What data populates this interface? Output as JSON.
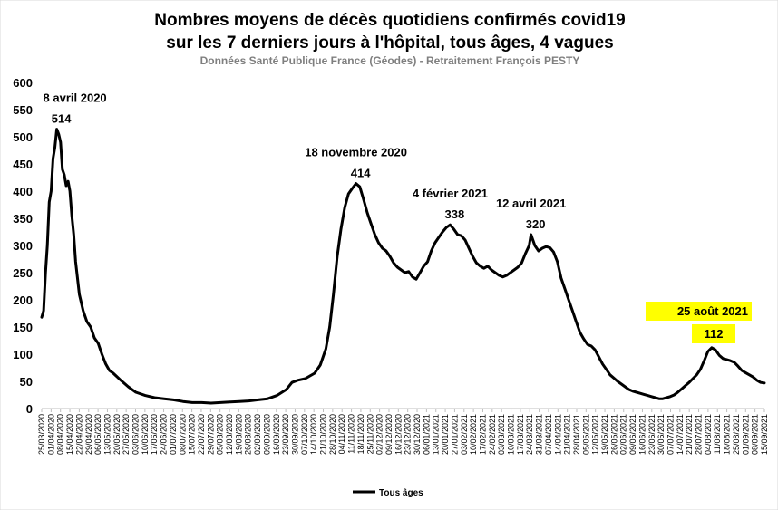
{
  "chart_data": {
    "type": "line",
    "title_line1": "Nombres moyens de décès quotidiens confirmés covid19",
    "title_line2": "sur les 7 derniers jours à l'hôpital, tous âges, 4 vagues",
    "subtitle": "Données Santé Publique France (Géodes) - Retraitement François PESTY",
    "ylim": [
      0,
      600
    ],
    "yticks": [
      0,
      50,
      100,
      150,
      200,
      250,
      300,
      350,
      400,
      450,
      500,
      550,
      600
    ],
    "grid": false,
    "legend_position": "bottom",
    "series": [
      {
        "name": "Tous âges",
        "color": "#000000",
        "points": [
          [
            0,
            168
          ],
          [
            1,
            180
          ],
          [
            2,
            250
          ],
          [
            3,
            300
          ],
          [
            4,
            380
          ],
          [
            5,
            400
          ],
          [
            6,
            460
          ],
          [
            7,
            480
          ],
          [
            8,
            514
          ],
          [
            9,
            505
          ],
          [
            10,
            490
          ],
          [
            11,
            440
          ],
          [
            12,
            430
          ],
          [
            13,
            410
          ],
          [
            14,
            418
          ],
          [
            15,
            400
          ],
          [
            16,
            355
          ],
          [
            17,
            320
          ],
          [
            18,
            270
          ],
          [
            20,
            210
          ],
          [
            22,
            180
          ],
          [
            24,
            160
          ],
          [
            26,
            150
          ],
          [
            28,
            130
          ],
          [
            30,
            120
          ],
          [
            32,
            100
          ],
          [
            34,
            82
          ],
          [
            36,
            70
          ],
          [
            38,
            65
          ],
          [
            42,
            52
          ],
          [
            46,
            40
          ],
          [
            50,
            30
          ],
          [
            55,
            24
          ],
          [
            60,
            20
          ],
          [
            65,
            18
          ],
          [
            70,
            16
          ],
          [
            75,
            13
          ],
          [
            80,
            11
          ],
          [
            85,
            11
          ],
          [
            90,
            10
          ],
          [
            95,
            11
          ],
          [
            100,
            12
          ],
          [
            105,
            13
          ],
          [
            110,
            14
          ],
          [
            115,
            16
          ],
          [
            120,
            18
          ],
          [
            125,
            24
          ],
          [
            130,
            35
          ],
          [
            133,
            48
          ],
          [
            136,
            52
          ],
          [
            140,
            55
          ],
          [
            145,
            65
          ],
          [
            148,
            80
          ],
          [
            151,
            110
          ],
          [
            153,
            150
          ],
          [
            155,
            210
          ],
          [
            157,
            280
          ],
          [
            159,
            330
          ],
          [
            161,
            370
          ],
          [
            163,
            395
          ],
          [
            165,
            405
          ],
          [
            167,
            414
          ],
          [
            169,
            408
          ],
          [
            171,
            385
          ],
          [
            173,
            360
          ],
          [
            175,
            340
          ],
          [
            177,
            320
          ],
          [
            179,
            305
          ],
          [
            181,
            295
          ],
          [
            183,
            290
          ],
          [
            185,
            280
          ],
          [
            187,
            268
          ],
          [
            189,
            260
          ],
          [
            191,
            255
          ],
          [
            193,
            250
          ],
          [
            195,
            252
          ],
          [
            197,
            242
          ],
          [
            199,
            238
          ],
          [
            201,
            250
          ],
          [
            203,
            262
          ],
          [
            205,
            270
          ],
          [
            207,
            290
          ],
          [
            209,
            305
          ],
          [
            211,
            315
          ],
          [
            213,
            325
          ],
          [
            215,
            333
          ],
          [
            217,
            338
          ],
          [
            219,
            330
          ],
          [
            221,
            320
          ],
          [
            223,
            318
          ],
          [
            225,
            310
          ],
          [
            227,
            295
          ],
          [
            229,
            280
          ],
          [
            231,
            268
          ],
          [
            233,
            262
          ],
          [
            235,
            258
          ],
          [
            237,
            262
          ],
          [
            239,
            255
          ],
          [
            241,
            250
          ],
          [
            243,
            245
          ],
          [
            245,
            242
          ],
          [
            247,
            245
          ],
          [
            249,
            250
          ],
          [
            251,
            255
          ],
          [
            253,
            260
          ],
          [
            255,
            268
          ],
          [
            257,
            285
          ],
          [
            259,
            300
          ],
          [
            260,
            320
          ],
          [
            262,
            300
          ],
          [
            264,
            290
          ],
          [
            266,
            295
          ],
          [
            268,
            298
          ],
          [
            270,
            296
          ],
          [
            272,
            288
          ],
          [
            274,
            270
          ],
          [
            276,
            240
          ],
          [
            278,
            220
          ],
          [
            280,
            200
          ],
          [
            282,
            180
          ],
          [
            284,
            160
          ],
          [
            286,
            140
          ],
          [
            288,
            128
          ],
          [
            290,
            118
          ],
          [
            292,
            115
          ],
          [
            294,
            108
          ],
          [
            296,
            95
          ],
          [
            298,
            82
          ],
          [
            300,
            72
          ],
          [
            302,
            62
          ],
          [
            304,
            56
          ],
          [
            306,
            50
          ],
          [
            308,
            45
          ],
          [
            310,
            40
          ],
          [
            312,
            35
          ],
          [
            314,
            32
          ],
          [
            316,
            30
          ],
          [
            318,
            28
          ],
          [
            320,
            26
          ],
          [
            322,
            24
          ],
          [
            324,
            22
          ],
          [
            326,
            20
          ],
          [
            328,
            18
          ],
          [
            330,
            18
          ],
          [
            332,
            20
          ],
          [
            334,
            22
          ],
          [
            336,
            25
          ],
          [
            338,
            30
          ],
          [
            340,
            36
          ],
          [
            342,
            42
          ],
          [
            344,
            48
          ],
          [
            346,
            55
          ],
          [
            348,
            62
          ],
          [
            350,
            72
          ],
          [
            352,
            88
          ],
          [
            354,
            105
          ],
          [
            356,
            112
          ],
          [
            358,
            108
          ],
          [
            360,
            98
          ],
          [
            362,
            92
          ],
          [
            364,
            90
          ],
          [
            366,
            88
          ],
          [
            368,
            85
          ],
          [
            370,
            78
          ],
          [
            372,
            70
          ],
          [
            374,
            66
          ],
          [
            376,
            62
          ],
          [
            378,
            58
          ],
          [
            380,
            52
          ],
          [
            382,
            48
          ],
          [
            384,
            47
          ]
        ]
      }
    ],
    "x_labels": [
      "25/03/2020",
      "01/04/2020",
      "08/04/2020",
      "15/04/2020",
      "22/04/2020",
      "29/04/2020",
      "06/05/2020",
      "13/05/2020",
      "20/05/2020",
      "27/05/2020",
      "03/06/2020",
      "10/06/2020",
      "17/06/2020",
      "24/06/2020",
      "01/07/2020",
      "08/07/2020",
      "15/07/2020",
      "22/07/2020",
      "29/07/2020",
      "05/08/2020",
      "12/08/2020",
      "19/08/2020",
      "26/08/2020",
      "02/09/2020",
      "09/09/2020",
      "16/09/2020",
      "23/09/2020",
      "30/09/2020",
      "07/10/2020",
      "14/10/2020",
      "21/10/2020",
      "28/10/2020",
      "04/11/2020",
      "11/11/2020",
      "18/11/2020",
      "25/11/2020",
      "02/12/2020",
      "09/12/2020",
      "16/12/2020",
      "23/12/2020",
      "30/12/2020",
      "06/01/2021",
      "13/01/2021",
      "20/01/2021",
      "27/01/2021",
      "03/02/2021",
      "10/02/2021",
      "17/02/2021",
      "24/02/2021",
      "03/03/2021",
      "10/03/2021",
      "17/03/2021",
      "24/03/2021",
      "31/03/2021",
      "07/04/2021",
      "14/04/2021",
      "21/04/2021",
      "28/04/2021",
      "05/05/2021",
      "12/05/2021",
      "19/05/2021",
      "26/05/2021",
      "02/06/2021",
      "09/06/2021",
      "16/06/2021",
      "23/06/2021",
      "30/06/2021",
      "07/07/2021",
      "14/07/2021",
      "21/07/2021",
      "28/07/2021",
      "04/08/2021",
      "11/08/2021",
      "18/08/2021",
      "25/08/2021",
      "01/09/2021",
      "08/09/2021",
      "15/09/2021"
    ],
    "annotations": [
      {
        "id": "a1",
        "date": "8 avril 2020",
        "value": "514",
        "x": 8,
        "y": 514,
        "highlight": false
      },
      {
        "id": "a2",
        "date": "18 novembre 2020",
        "value": "414",
        "x": 167,
        "y": 414,
        "highlight": false
      },
      {
        "id": "a3",
        "date": "4 février 2021",
        "value": "338",
        "x": 217,
        "y": 338,
        "highlight": false
      },
      {
        "id": "a4",
        "date": "12 avril 2021",
        "value": "320",
        "x": 260,
        "y": 320,
        "highlight": false
      },
      {
        "id": "a5",
        "date": "25 août 2021",
        "value": "112",
        "x": 356,
        "y": 112,
        "highlight": true
      }
    ],
    "highlight_color": "#ffff00"
  }
}
